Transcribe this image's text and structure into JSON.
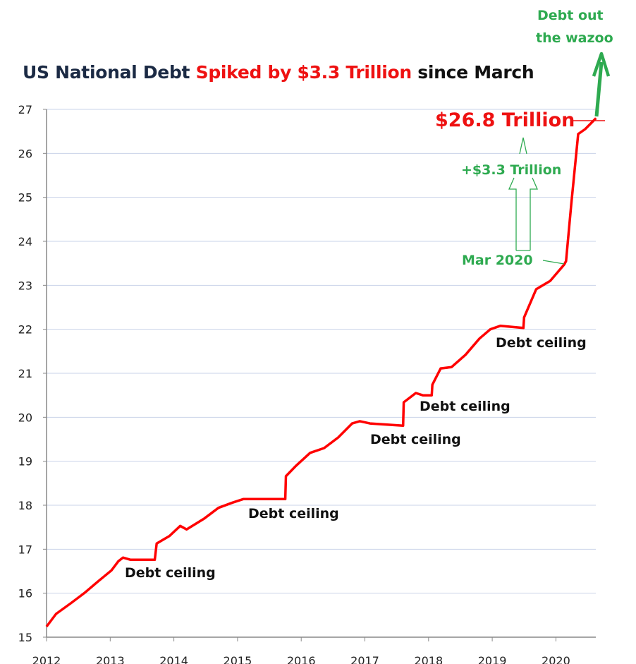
{
  "chart_data": {
    "type": "line",
    "title_parts": [
      "US National Debt",
      "Spiked by $3.3 Trillion",
      "since March"
    ],
    "xlabel": "",
    "ylabel": "",
    "xlim": [
      2012,
      2020.63
    ],
    "ylim": [
      15,
      27
    ],
    "x_ticks": [
      "2012",
      "2013",
      "2014",
      "2015",
      "2016",
      "2017",
      "2018",
      "2019",
      "2020"
    ],
    "y_ticks": [
      "15",
      "16",
      "17",
      "18",
      "19",
      "20",
      "21",
      "22",
      "23",
      "24",
      "25",
      "26",
      "27"
    ],
    "grid": true,
    "series": [
      {
        "name": "US National Debt ($ Trillion)",
        "color": "#ff0000",
        "x": [
          2012.0,
          2012.15,
          2012.38,
          2012.6,
          2012.82,
          2013.02,
          2013.13,
          2013.2,
          2013.32,
          2013.7,
          2013.73,
          2013.93,
          2014.1,
          2014.2,
          2014.48,
          2014.7,
          2014.92,
          2015.09,
          2015.75,
          2015.76,
          2015.92,
          2016.14,
          2016.36,
          2016.58,
          2016.8,
          2016.92,
          2017.08,
          2017.6,
          2017.61,
          2017.8,
          2017.91,
          2018.05,
          2018.06,
          2018.19,
          2018.36,
          2018.58,
          2018.8,
          2018.97,
          2019.13,
          2019.49,
          2019.5,
          2019.69,
          2019.91,
          2020.13,
          2020.16,
          2020.24,
          2020.35,
          2020.46,
          2020.63
        ],
        "y": [
          15.24,
          15.53,
          15.77,
          16.01,
          16.28,
          16.52,
          16.73,
          16.81,
          16.76,
          16.76,
          17.13,
          17.3,
          17.53,
          17.45,
          17.7,
          17.94,
          18.06,
          18.14,
          18.14,
          18.66,
          18.9,
          19.19,
          19.3,
          19.54,
          19.86,
          19.91,
          19.86,
          19.81,
          20.34,
          20.55,
          20.5,
          20.5,
          20.74,
          21.11,
          21.14,
          21.42,
          21.79,
          22.0,
          22.08,
          22.03,
          22.27,
          22.91,
          23.1,
          23.47,
          23.55,
          24.83,
          26.44,
          26.55,
          26.8
        ]
      }
    ],
    "annotations": {
      "debt_ceiling": [
        "Debt ceiling",
        "Debt ceiling",
        "Debt ceiling",
        "Debt ceiling",
        "Debt ceiling"
      ],
      "current_value": "$26.8 Trillion",
      "increase": "+$3.3 Trillion",
      "start_marker": "Mar 2020",
      "wazoo_line1": "Debt out",
      "wazoo_line2": "the wazoo"
    },
    "colors": {
      "line": "#ff0000",
      "green": "#2eaa50",
      "grid": "#c9d3e8",
      "axis": "#888888"
    }
  }
}
